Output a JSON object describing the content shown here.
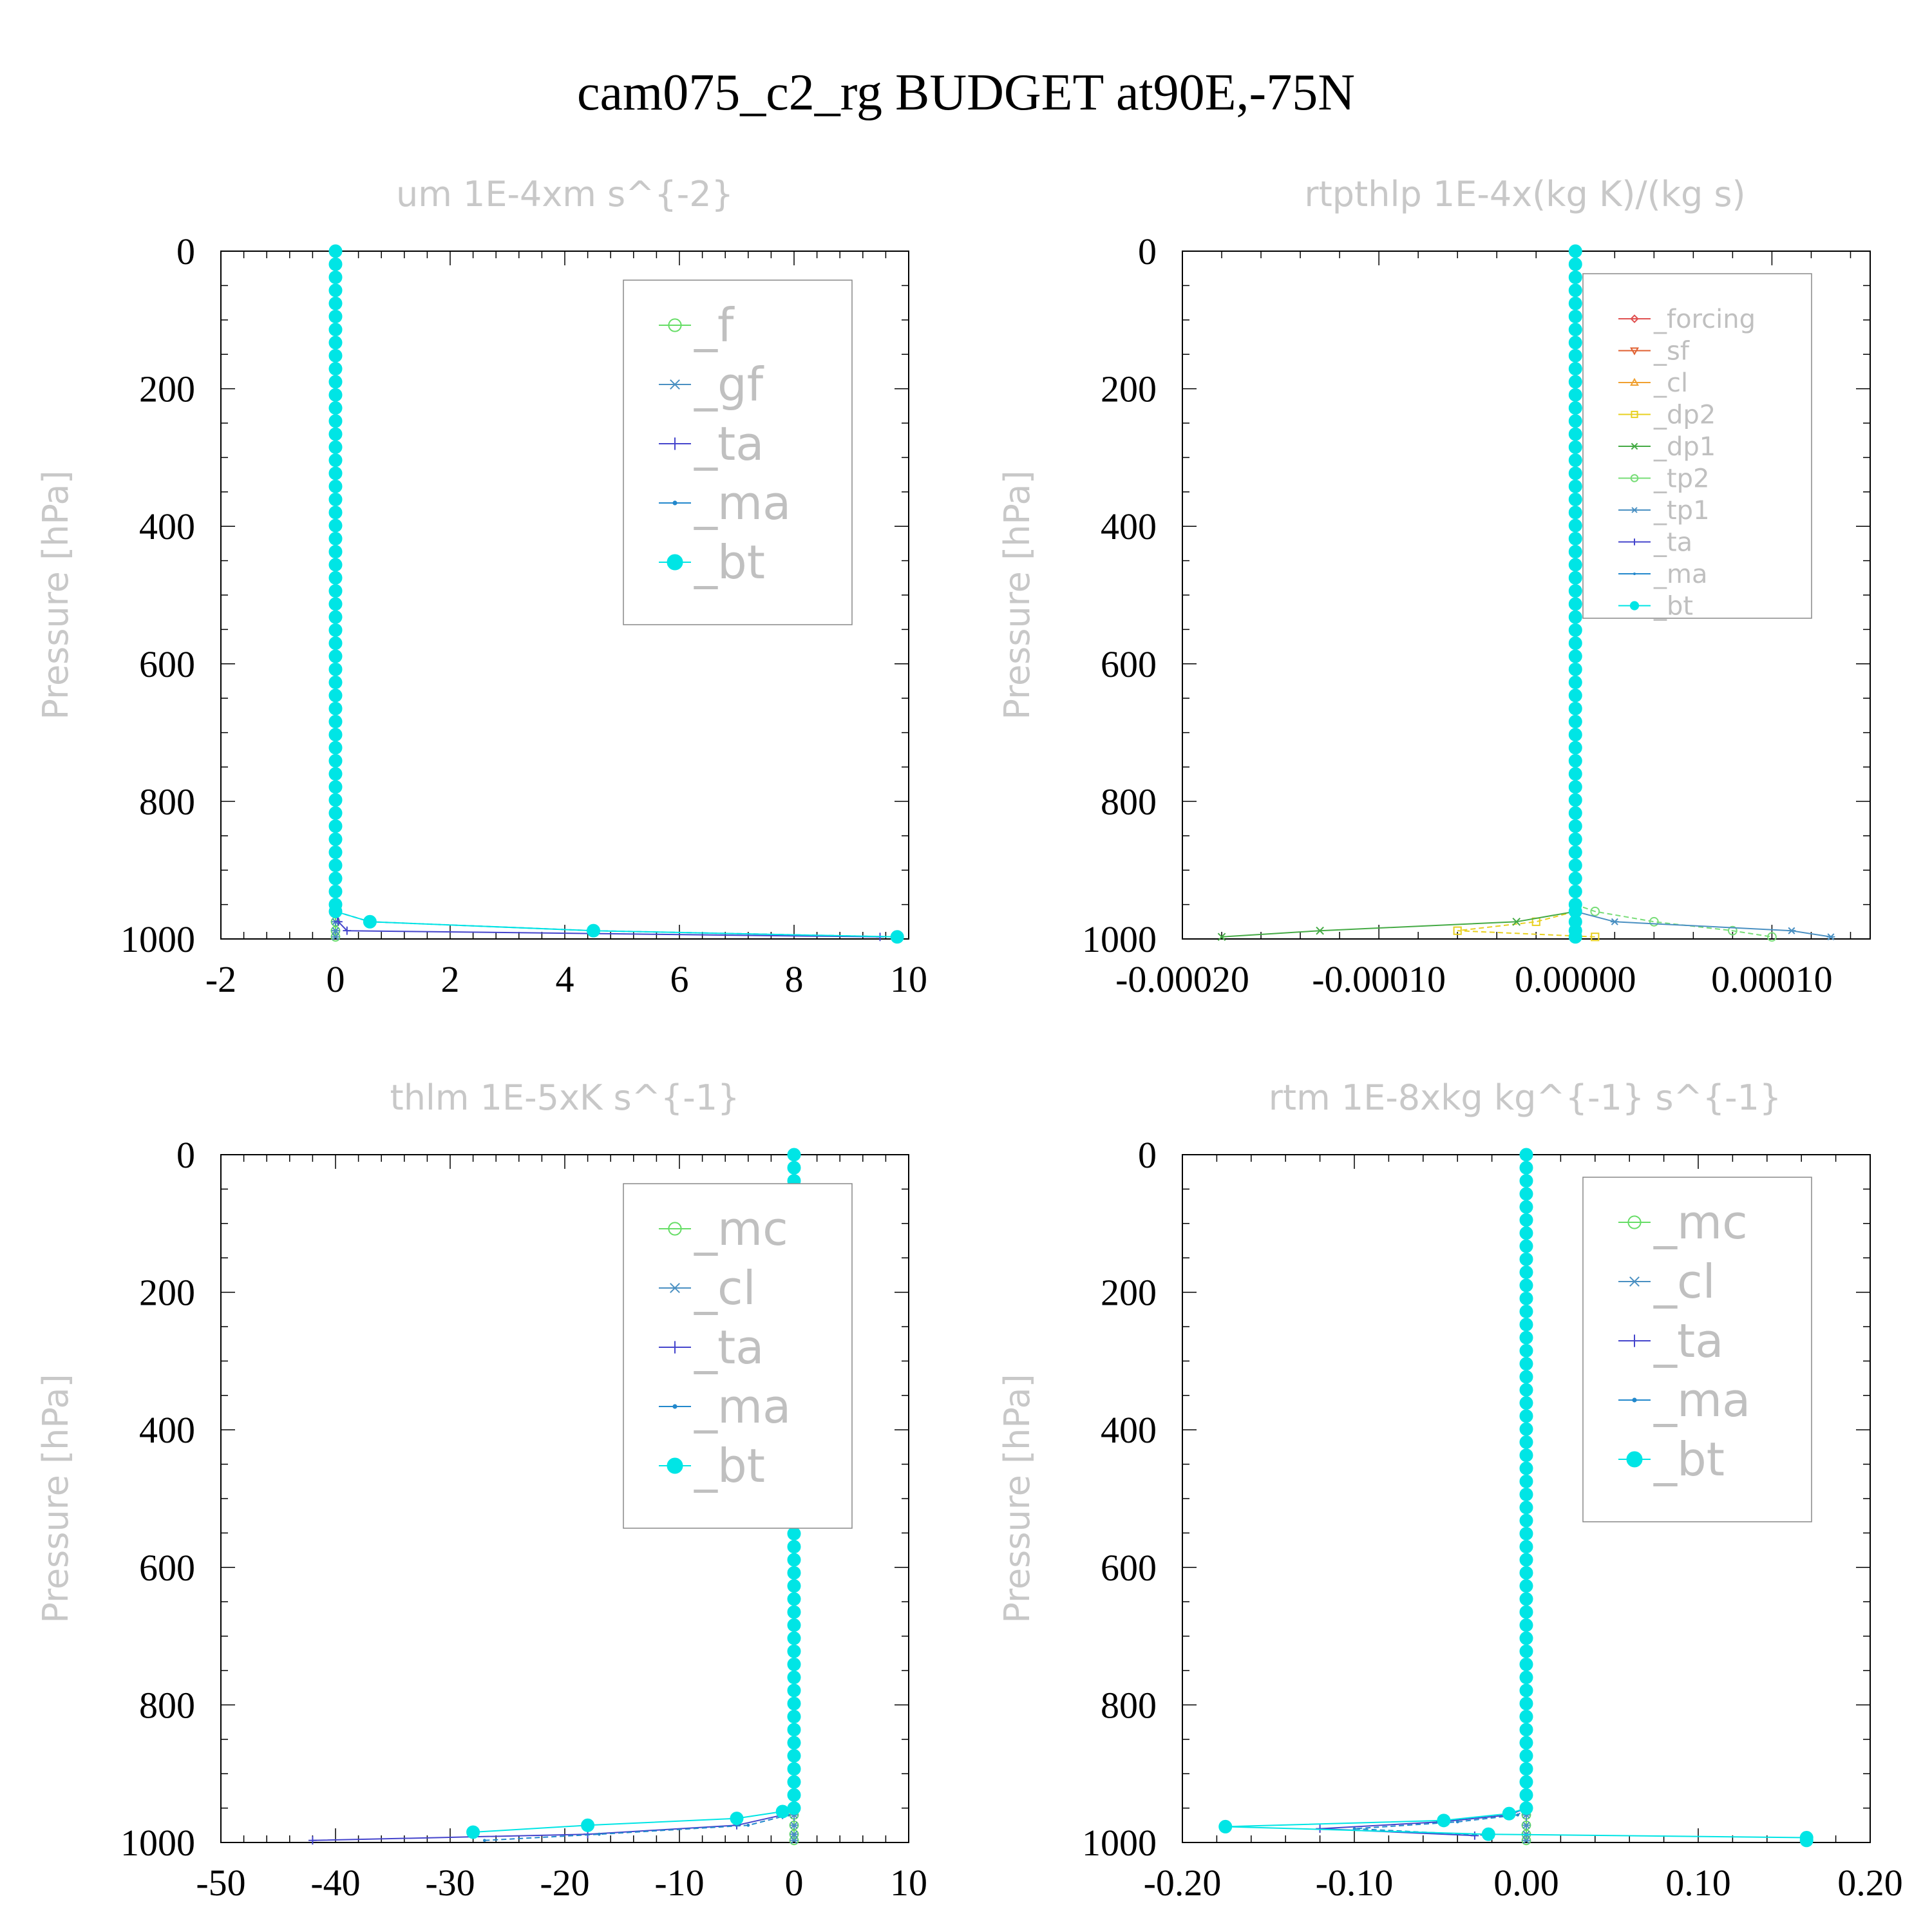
{
  "figure_title": "cam075_c2_rg  BUDGET at90E,-75N",
  "chart_data": [
    {
      "type": "line",
      "title": "um   1E-4xm s^{-2}",
      "ylabel": "Pressure [hPa]",
      "xlabel": "",
      "xlim": [
        -2,
        10
      ],
      "ylim": [
        1000,
        0
      ],
      "y_inverted": true,
      "x_ticks": [
        -2,
        0,
        2,
        4,
        6,
        8,
        10
      ],
      "x_tick_labels": [
        "-2",
        "0",
        "2",
        "4",
        "6",
        "8",
        "10"
      ],
      "y_ticks": [
        0,
        200,
        400,
        600,
        800,
        1000
      ],
      "y_tick_labels": [
        "0",
        "200",
        "400",
        "600",
        "800",
        "1000"
      ],
      "legend_position": "top-right",
      "legend": [
        "_f",
        "_gf",
        "_ta",
        "_ma",
        "_bt"
      ],
      "series": [
        {
          "name": "_f",
          "color": "#66dd66",
          "marker": "circle",
          "points": [
            [
              0,
              960
            ],
            [
              0,
              975
            ],
            [
              0,
              988
            ],
            [
              0,
              997
            ]
          ]
        },
        {
          "name": "_gf",
          "color": "#4a90c2",
          "marker": "star",
          "points": [
            [
              0,
              960
            ],
            [
              0,
              975
            ],
            [
              0,
              988
            ],
            [
              0,
              997
            ]
          ]
        },
        {
          "name": "_ta",
          "color": "#4444cc",
          "marker": "plus",
          "points": [
            [
              0,
              960
            ],
            [
              0.05,
              975
            ],
            [
              0.2,
              988
            ],
            [
              9.5,
              997
            ]
          ]
        },
        {
          "name": "_ma",
          "color": "#2288cc",
          "marker": "dot",
          "points": [
            [
              0,
              960
            ],
            [
              0.6,
              975
            ],
            [
              4.5,
              988
            ],
            [
              9.8,
              997
            ]
          ]
        },
        {
          "name": "_bt",
          "color": "#00e5e5",
          "marker": "filled-circle",
          "points": [
            [
              0,
              960
            ],
            [
              0.6,
              975
            ],
            [
              4.5,
              988
            ],
            [
              9.8,
              997
            ]
          ]
        }
      ]
    },
    {
      "type": "line",
      "title": "rtpthlp   1E-4x(kg K)/(kg s)",
      "ylabel": "Pressure [hPa]",
      "xlabel": "",
      "xlim": [
        -0.0002,
        0.00015
      ],
      "ylim": [
        1000,
        0
      ],
      "y_inverted": true,
      "x_ticks": [
        -0.0002,
        -0.0001,
        0,
        0.0001
      ],
      "x_tick_labels": [
        "-0.00020",
        "-0.00010",
        "0.00000",
        "0.00010"
      ],
      "y_ticks": [
        0,
        200,
        400,
        600,
        800,
        1000
      ],
      "y_tick_labels": [
        "0",
        "200",
        "400",
        "600",
        "800",
        "1000"
      ],
      "legend_position": "top-right",
      "legend": [
        "_forcing",
        "_sf",
        "_cl",
        "_dp2",
        "_dp1",
        "_tp2",
        "_tp1",
        "_ta",
        "_ma",
        "_bt"
      ],
      "series": [
        {
          "name": "_forcing",
          "color": "#e05050",
          "marker": "diamond",
          "points": [
            [
              0,
              960
            ],
            [
              0,
              975
            ],
            [
              0,
              988
            ],
            [
              0,
              997
            ]
          ]
        },
        {
          "name": "_sf",
          "color": "#e06030",
          "marker": "triangle-down",
          "points": [
            [
              0,
              960
            ],
            [
              0,
              975
            ],
            [
              0,
              988
            ],
            [
              0,
              997
            ]
          ]
        },
        {
          "name": "_cl",
          "color": "#f0a030",
          "marker": "triangle-up",
          "points": [
            [
              0,
              960
            ],
            [
              0,
              975
            ],
            [
              0,
              988
            ],
            [
              0,
              997
            ]
          ]
        },
        {
          "name": "_dp2",
          "color": "#e8d020",
          "marker": "square",
          "points": [
            [
              0,
              960
            ],
            [
              -2e-05,
              975
            ],
            [
              -6e-05,
              988
            ],
            [
              1e-05,
              997
            ]
          ]
        },
        {
          "name": "_dp1",
          "color": "#44aa44",
          "marker": "cross",
          "points": [
            [
              0,
              960
            ],
            [
              -3e-05,
              975
            ],
            [
              -0.00013,
              988
            ],
            [
              -0.00018,
              997
            ]
          ]
        },
        {
          "name": "_tp2",
          "color": "#77dd77",
          "marker": "circle",
          "points": [
            [
              1e-05,
              960
            ],
            [
              4e-05,
              975
            ],
            [
              8e-05,
              988
            ],
            [
              0.0001,
              997
            ]
          ]
        },
        {
          "name": "_tp1",
          "color": "#4a90c2",
          "marker": "star",
          "points": [
            [
              0,
              960
            ],
            [
              2e-05,
              975
            ],
            [
              0.00011,
              988
            ],
            [
              0.00013,
              997
            ]
          ]
        },
        {
          "name": "_ta",
          "color": "#4444cc",
          "marker": "plus",
          "points": [
            [
              0,
              960
            ],
            [
              0,
              975
            ],
            [
              0,
              988
            ],
            [
              0,
              997
            ]
          ]
        },
        {
          "name": "_ma",
          "color": "#2288cc",
          "marker": "dot",
          "points": [
            [
              0,
              960
            ],
            [
              0,
              975
            ],
            [
              0,
              988
            ],
            [
              0,
              997
            ]
          ]
        },
        {
          "name": "_bt",
          "color": "#00e5e5",
          "marker": "filled-circle",
          "points": [
            [
              0,
              960
            ],
            [
              0,
              975
            ],
            [
              0,
              988
            ],
            [
              0,
              997
            ]
          ]
        }
      ]
    },
    {
      "type": "line",
      "title": "thlm   1E-5xK s^{-1}",
      "ylabel": "Pressure [hPa]",
      "xlabel": "",
      "xlim": [
        -50,
        10
      ],
      "ylim": [
        1000,
        0
      ],
      "y_inverted": true,
      "x_ticks": [
        -50,
        -40,
        -30,
        -20,
        -10,
        0,
        10
      ],
      "x_tick_labels": [
        "-50",
        "-40",
        "-30",
        "-20",
        "-10",
        "0",
        "10"
      ],
      "y_ticks": [
        0,
        200,
        400,
        600,
        800,
        1000
      ],
      "y_tick_labels": [
        "0",
        "200",
        "400",
        "600",
        "800",
        "1000"
      ],
      "legend_position": "top-right",
      "legend": [
        "_mc",
        "_cl",
        "_ta",
        "_ma",
        "_bt"
      ],
      "series": [
        {
          "name": "_mc",
          "color": "#66dd66",
          "marker": "circle",
          "points": [
            [
              0,
              960
            ],
            [
              0,
              975
            ],
            [
              0,
              988
            ],
            [
              0,
              997
            ]
          ]
        },
        {
          "name": "_cl",
          "color": "#4a90c2",
          "marker": "star",
          "points": [
            [
              0,
              960
            ],
            [
              0,
              975
            ],
            [
              0,
              988
            ],
            [
              0,
              997
            ]
          ]
        },
        {
          "name": "_ta",
          "color": "#4444cc",
          "marker": "plus",
          "points": [
            [
              -1,
              960
            ],
            [
              -5,
              975
            ],
            [
              -18,
              988
            ],
            [
              -42,
              997
            ]
          ]
        },
        {
          "name": "_ma",
          "color": "#2288cc",
          "marker": "dot",
          "points": [
            [
              -0.5,
              960
            ],
            [
              -4,
              975
            ],
            [
              -17,
              988
            ],
            [
              -27,
              997
            ]
          ]
        },
        {
          "name": "_bt",
          "color": "#00e5e5",
          "marker": "filled-circle",
          "points": [
            [
              -1,
              955
            ],
            [
              -5,
              965
            ],
            [
              -18,
              975
            ],
            [
              -28,
              985
            ]
          ]
        }
      ]
    },
    {
      "type": "line",
      "title": "rtm   1E-8xkg kg^{-1} s^{-1}",
      "ylabel": "Pressure [hPa]",
      "xlabel": "",
      "xlim": [
        -0.2,
        0.2
      ],
      "ylim": [
        1000,
        0
      ],
      "y_inverted": true,
      "x_ticks": [
        -0.2,
        -0.1,
        0,
        0.1,
        0.2
      ],
      "x_tick_labels": [
        "-0.20",
        "-0.10",
        "0.00",
        "0.10",
        "0.20"
      ],
      "y_ticks": [
        0,
        200,
        400,
        600,
        800,
        1000
      ],
      "y_tick_labels": [
        "0",
        "200",
        "400",
        "600",
        "800",
        "1000"
      ],
      "legend_position": "top-right",
      "legend": [
        "_mc",
        "_cl",
        "_ta",
        "_ma",
        "_bt"
      ],
      "series": [
        {
          "name": "_mc",
          "color": "#66dd66",
          "marker": "circle",
          "points": [
            [
              0,
              960
            ],
            [
              0,
              975
            ],
            [
              0,
              988
            ],
            [
              0,
              997
            ]
          ]
        },
        {
          "name": "_cl",
          "color": "#4a90c2",
          "marker": "star",
          "points": [
            [
              0,
              960
            ],
            [
              0,
              975
            ],
            [
              0,
              988
            ],
            [
              0,
              997
            ]
          ]
        },
        {
          "name": "_ta",
          "color": "#4444cc",
          "marker": "plus",
          "points": [
            [
              -0.01,
              960
            ],
            [
              -0.05,
              970
            ],
            [
              -0.12,
              980
            ],
            [
              -0.03,
              990
            ]
          ]
        },
        {
          "name": "_ma",
          "color": "#2288cc",
          "marker": "dot",
          "points": [
            [
              -0.005,
              960
            ],
            [
              -0.04,
              970
            ],
            [
              -0.1,
              980
            ],
            [
              -0.02,
              990
            ]
          ]
        },
        {
          "name": "_bt",
          "color": "#00e5e5",
          "marker": "filled-circle",
          "points": [
            [
              -0.01,
              958
            ],
            [
              -0.048,
              968
            ],
            [
              -0.175,
              977
            ],
            [
              -0.022,
              988
            ],
            [
              0.163,
              993
            ],
            [
              0.163,
              997
            ]
          ]
        }
      ]
    }
  ]
}
